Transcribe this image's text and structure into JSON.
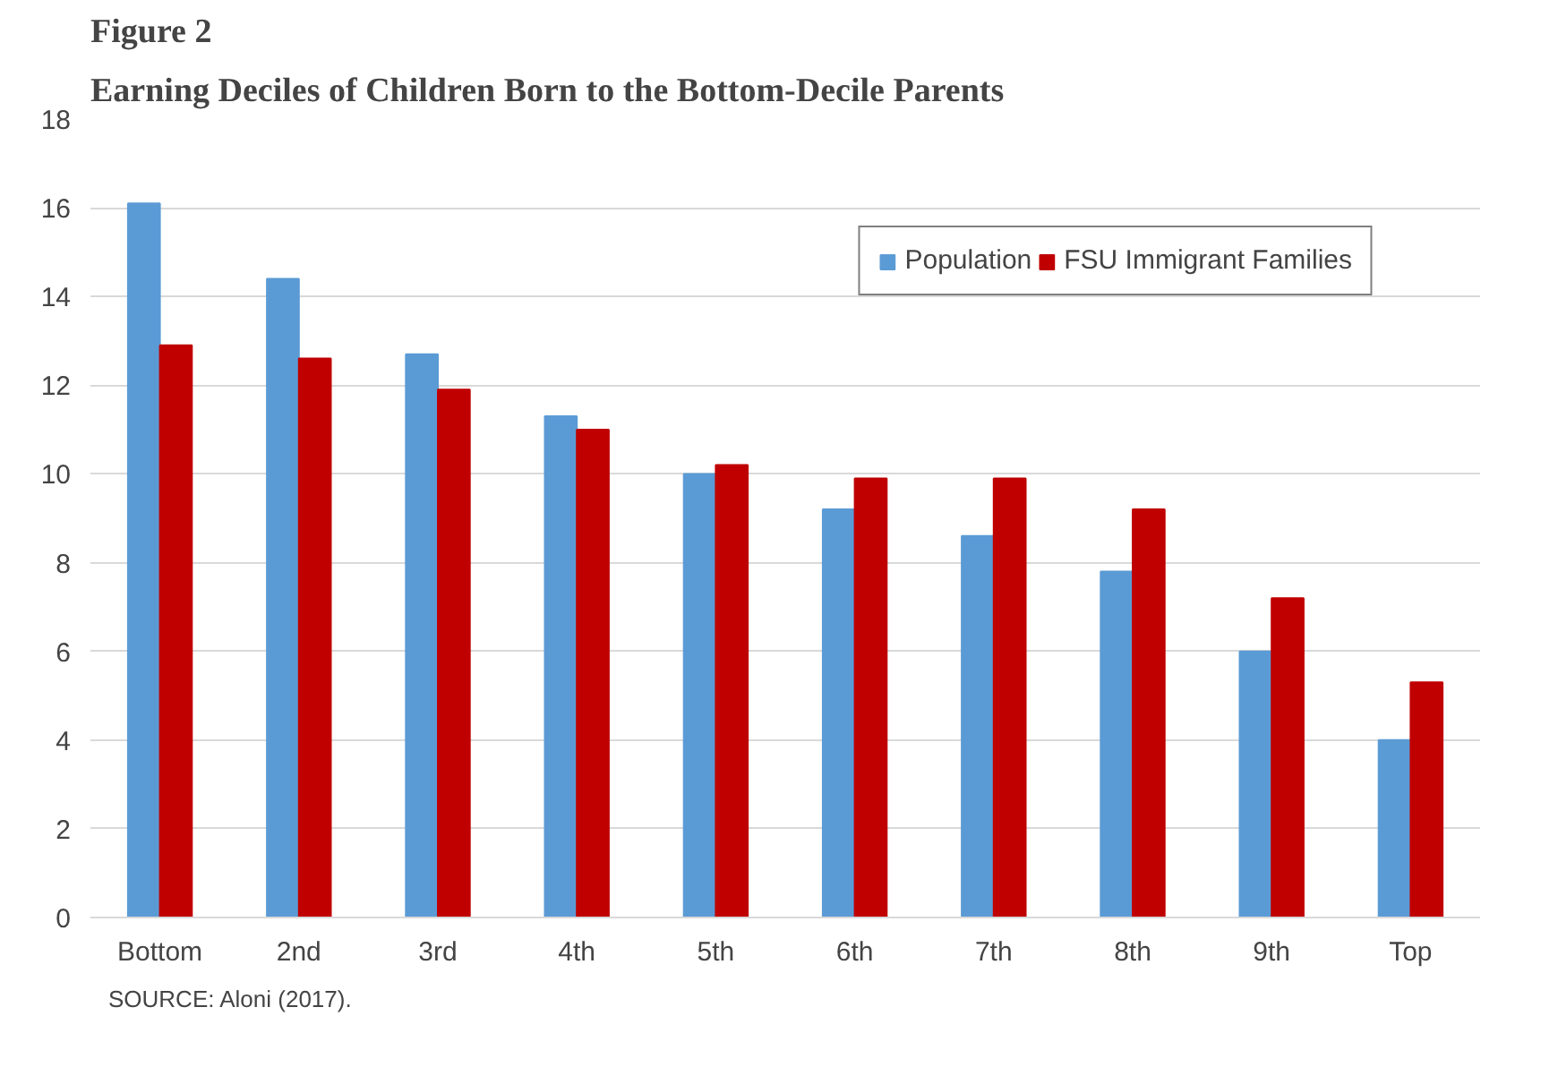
{
  "chart_data": {
    "type": "bar",
    "title": "Figure 2",
    "subtitle": "Earning Deciles of Children Born to the Bottom-Decile Parents",
    "categories": [
      "Bottom",
      "2nd",
      "3rd",
      "4th",
      "5th",
      "6th",
      "7th",
      "8th",
      "9th",
      "Top"
    ],
    "series": [
      {
        "name": "Population",
        "color": "#5b9bd5",
        "values": [
          16.1,
          14.4,
          12.7,
          11.3,
          10.0,
          9.2,
          8.6,
          7.8,
          6.0,
          4.0
        ]
      },
      {
        "name": "FSU Immigrant Families",
        "color": "#c00000",
        "values": [
          12.9,
          12.6,
          11.9,
          11.0,
          10.2,
          9.9,
          9.9,
          9.2,
          7.2,
          5.3
        ]
      }
    ],
    "ylim": [
      0,
      18
    ],
    "yticks": [
      0,
      2,
      4,
      6,
      8,
      10,
      12,
      14,
      16,
      18
    ],
    "grid": "y",
    "legend": "top right",
    "annotations": [
      "SOURCE:  Aloni (2017)."
    ]
  }
}
